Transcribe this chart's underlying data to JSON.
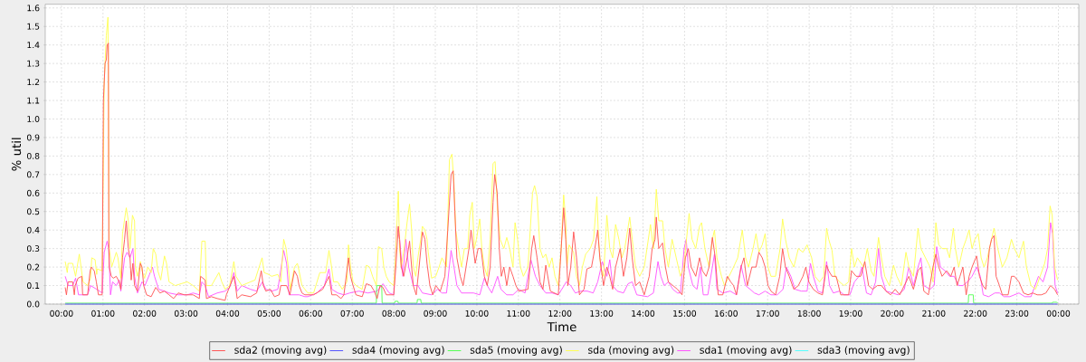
{
  "chart_data": {
    "type": "line",
    "xlabel": "Time",
    "ylabel": "% util",
    "xlim": [
      -0.39,
      24.49
    ],
    "ylim": [
      0,
      1.62
    ],
    "xticks": [
      {
        "value": 0,
        "label": "00:00"
      },
      {
        "value": 1,
        "label": "01:00"
      },
      {
        "value": 2,
        "label": "02:00"
      },
      {
        "value": 3,
        "label": "03:00"
      },
      {
        "value": 4,
        "label": "04:00"
      },
      {
        "value": 5,
        "label": "05:00"
      },
      {
        "value": 6,
        "label": "06:00"
      },
      {
        "value": 7,
        "label": "07:00"
      },
      {
        "value": 8,
        "label": "08:00"
      },
      {
        "value": 9,
        "label": "09:00"
      },
      {
        "value": 10,
        "label": "10:00"
      },
      {
        "value": 11,
        "label": "11:00"
      },
      {
        "value": 12,
        "label": "12:00"
      },
      {
        "value": 13,
        "label": "13:00"
      },
      {
        "value": 14,
        "label": "14:00"
      },
      {
        "value": 15,
        "label": "15:00"
      },
      {
        "value": 16,
        "label": "16:00"
      },
      {
        "value": 17,
        "label": "17:00"
      },
      {
        "value": 18,
        "label": "18:00"
      },
      {
        "value": 19,
        "label": "19:00"
      },
      {
        "value": 20,
        "label": "20:00"
      },
      {
        "value": 21,
        "label": "21:00"
      },
      {
        "value": 22,
        "label": "22:00"
      },
      {
        "value": 23,
        "label": "23:00"
      },
      {
        "value": 24,
        "label": "00:00"
      }
    ],
    "yticks": [
      {
        "value": 0,
        "label": "0.0"
      },
      0.1,
      0.2,
      0.3,
      0.4,
      0.5,
      0.6,
      0.7,
      0.8,
      0.9,
      {
        "value": 1,
        "label": "1.0"
      },
      1.1,
      1.2,
      1.3,
      1.4,
      1.5,
      1.6
    ],
    "grid": true,
    "legend": "bottom",
    "series": [
      {
        "name": "sda2 (moving avg)",
        "color": "#ff5555",
        "x": [
          0.09,
          0.12,
          0.16,
          0.27,
          0.31,
          0.33,
          0.4,
          0.49,
          0.51,
          0.63,
          0.69,
          0.72,
          0.79,
          0.84,
          0.89,
          0.98,
          1.01,
          1.05,
          1.08,
          1.1,
          1.13,
          1.14,
          1.15,
          1.2,
          1.25,
          1.32,
          1.39,
          1.43,
          1.47,
          1.52,
          1.56,
          1.61,
          1.65,
          1.68,
          1.72,
          1.76,
          1.83,
          1.9,
          1.94,
          1.98,
          2.05,
          2.16,
          2.27,
          2.37,
          2.48,
          2.59,
          2.7,
          2.81,
          2.96,
          3.17,
          3.32,
          3.35,
          3.46,
          3.49,
          3.61,
          3.75,
          3.94,
          3.97,
          4.15,
          4.19,
          4.23,
          4.34,
          4.55,
          4.7,
          4.81,
          4.86,
          4.92,
          5.03,
          5.13,
          5.24,
          5.28,
          5.42,
          5.5,
          5.61,
          5.68,
          5.72,
          5.79,
          5.86,
          6.07,
          6.29,
          6.44,
          6.51,
          6.62,
          6.73,
          6.8,
          6.91,
          6.96,
          7.02,
          7.09,
          7.24,
          7.34,
          7.45,
          7.53,
          7.6,
          7.67,
          7.74,
          7.82,
          8.0,
          8.05,
          8.11,
          8.14,
          8.18,
          8.24,
          8.32,
          8.38,
          8.43,
          8.47,
          8.54,
          8.61,
          8.69,
          8.75,
          8.8,
          8.87,
          8.94,
          9.01,
          9.12,
          9.23,
          9.3,
          9.38,
          9.43,
          9.47,
          9.52,
          9.6,
          9.67,
          9.74,
          9.81,
          9.86,
          9.96,
          10.03,
          10.1,
          10.18,
          10.25,
          10.32,
          10.39,
          10.43,
          10.49,
          10.54,
          10.59,
          10.65,
          10.72,
          10.79,
          10.87,
          10.94,
          11.01,
          11.23,
          11.32,
          11.37,
          11.45,
          11.52,
          11.59,
          11.66,
          11.77,
          11.96,
          12.03,
          12.09,
          12.14,
          12.19,
          12.26,
          12.33,
          12.4,
          12.47,
          12.58,
          12.65,
          12.76,
          12.84,
          12.91,
          12.96,
          13.05,
          13.13,
          13.2,
          13.27,
          13.34,
          13.45,
          13.53,
          13.61,
          13.68,
          13.74,
          13.82,
          13.92,
          14.03,
          14.15,
          14.22,
          14.29,
          14.32,
          14.38,
          14.47,
          14.54,
          14.61,
          14.72,
          14.83,
          14.94,
          15.02,
          15.09,
          15.16,
          15.27,
          15.36,
          15.43,
          15.52,
          15.59,
          15.67,
          15.74,
          15.81,
          15.92,
          16.03,
          16.11,
          16.18,
          16.25,
          16.36,
          16.43,
          16.51,
          16.62,
          16.72,
          16.79,
          16.87,
          16.94,
          17.01,
          17.08,
          17.19,
          17.29,
          17.36,
          17.43,
          17.52,
          17.63,
          17.74,
          17.85,
          17.92,
          17.99,
          18.1,
          18.21,
          18.32,
          18.42,
          18.47,
          18.55,
          18.65,
          18.76,
          18.95,
          19.02,
          19.13,
          19.24,
          19.34,
          19.43,
          19.53,
          19.64,
          19.74,
          19.85,
          19.96,
          20.07,
          20.18,
          20.29,
          20.4,
          20.51,
          20.62,
          20.69,
          20.76,
          20.87,
          20.98,
          21.05,
          21.12,
          21.2,
          21.31,
          21.41,
          21.49,
          21.56,
          21.63,
          21.7,
          21.78,
          21.85,
          21.92,
          22.03,
          22.1,
          22.18,
          22.25,
          22.34,
          22.39,
          22.45,
          22.5,
          22.58,
          22.65,
          22.79,
          22.87,
          22.94,
          23.05,
          23.16,
          23.27,
          23.38,
          23.49,
          23.59,
          23.7,
          23.81,
          23.91,
          23.98
        ],
        "values": [
          0.09,
          0.05,
          0.12,
          0.12,
          0.05,
          0.1,
          0.14,
          0.15,
          0.05,
          0.05,
          0.18,
          0.2,
          0.18,
          0.12,
          0.05,
          0.05,
          1.1,
          1.3,
          1.32,
          1.4,
          1.41,
          0.3,
          0.2,
          0.15,
          0.14,
          0.15,
          0.12,
          0.08,
          0.25,
          0.35,
          0.45,
          0.3,
          0.25,
          0.13,
          0.22,
          0.1,
          0.07,
          0.22,
          0.2,
          0.1,
          0.05,
          0.04,
          0.09,
          0.06,
          0.07,
          0.05,
          0.03,
          0.06,
          0.05,
          0.05,
          0.03,
          0.15,
          0.13,
          0.03,
          0.04,
          0.03,
          0.02,
          0.05,
          0.15,
          0.1,
          0.03,
          0.05,
          0.04,
          0.06,
          0.18,
          0.1,
          0.07,
          0.08,
          0.04,
          0.05,
          0.1,
          0.1,
          0.05,
          0.18,
          0.15,
          0.1,
          0.06,
          0.05,
          0.05,
          0.08,
          0.15,
          0.05,
          0.05,
          0.03,
          0.05,
          0.25,
          0.15,
          0.1,
          0.05,
          0.04,
          0.11,
          0.1,
          0.07,
          0.03,
          0.1,
          0.09,
          0.05,
          0.05,
          0.2,
          0.42,
          0.35,
          0.2,
          0.15,
          0.25,
          0.34,
          0.2,
          0.1,
          0.05,
          0.2,
          0.39,
          0.35,
          0.22,
          0.1,
          0.05,
          0.1,
          0.07,
          0.15,
          0.4,
          0.7,
          0.72,
          0.5,
          0.25,
          0.15,
          0.1,
          0.2,
          0.3,
          0.4,
          0.22,
          0.3,
          0.3,
          0.15,
          0.1,
          0.2,
          0.55,
          0.7,
          0.6,
          0.3,
          0.15,
          0.2,
          0.1,
          0.2,
          0.15,
          0.1,
          0.07,
          0.08,
          0.3,
          0.37,
          0.25,
          0.12,
          0.08,
          0.21,
          0.07,
          0.05,
          0.3,
          0.52,
          0.35,
          0.1,
          0.2,
          0.39,
          0.25,
          0.05,
          0.08,
          0.19,
          0.2,
          0.3,
          0.4,
          0.25,
          0.1,
          0.2,
          0.15,
          0.08,
          0.2,
          0.3,
          0.15,
          0.25,
          0.41,
          0.25,
          0.1,
          0.12,
          0.05,
          0.15,
          0.3,
          0.35,
          0.47,
          0.3,
          0.33,
          0.2,
          0.12,
          0.1,
          0.08,
          0.05,
          0.25,
          0.3,
          0.2,
          0.15,
          0.25,
          0.18,
          0.15,
          0.2,
          0.36,
          0.25,
          0.05,
          0.05,
          0.15,
          0.12,
          0.1,
          0.05,
          0.2,
          0.25,
          0.1,
          0.2,
          0.2,
          0.28,
          0.25,
          0.2,
          0.1,
          0.07,
          0.05,
          0.15,
          0.3,
          0.2,
          0.15,
          0.08,
          0.1,
          0.15,
          0.2,
          0.12,
          0.08,
          0.06,
          0.05,
          0.21,
          0.18,
          0.15,
          0.15,
          0.05,
          0.05,
          0.18,
          0.15,
          0.15,
          0.23,
          0.1,
          0.08,
          0.1,
          0.1,
          0.07,
          0.05,
          0.08,
          0.05,
          0.1,
          0.15,
          0.08,
          0.18,
          0.2,
          0.07,
          0.05,
          0.2,
          0.27,
          0.2,
          0.15,
          0.18,
          0.15,
          0.2,
          0.1,
          0.15,
          0.2,
          0.05,
          0.15,
          0.2,
          0.26,
          0.15,
          0.1,
          0.08,
          0.3,
          0.35,
          0.37,
          0.15,
          0.1,
          0.05,
          0.05,
          0.15,
          0.15,
          0.12,
          0.06,
          0.05,
          0.06,
          0.05,
          0.05,
          0.06,
          0.1,
          0.08,
          0.05
        ]
      },
      {
        "name": "sda4 (moving avg)",
        "color": "#5555ff",
        "x": [
          0.09,
          23.98
        ],
        "values": [
          0,
          0
        ]
      },
      {
        "name": "sda5 (moving avg)",
        "color": "#55ff55",
        "x": [
          0.09,
          7.58,
          7.59,
          7.71,
          7.72,
          8.02,
          8.03,
          8.1,
          8.11,
          8.56,
          8.57,
          8.65,
          8.66,
          21.83,
          21.84,
          21.95,
          21.96,
          23.85,
          23.86,
          23.96,
          23.98
        ],
        "values": [
          0.005,
          0.005,
          0.1,
          0.1,
          0.005,
          0.005,
          0.015,
          0.015,
          0.005,
          0.005,
          0.025,
          0.025,
          0.005,
          0.005,
          0.05,
          0.05,
          0.005,
          0.005,
          0.01,
          0.01,
          0.005
        ]
      },
      {
        "name": "sda (moving avg)",
        "color": "#ffff55",
        "x": [
          0.09,
          0.14,
          0.16,
          0.27,
          0.34,
          0.43,
          0.52,
          0.63,
          0.7,
          0.73,
          0.81,
          0.85,
          0.86,
          0.98,
          1.03,
          1.07,
          1.08,
          1.1,
          1.12,
          1.15,
          1.21,
          1.32,
          1.36,
          1.43,
          1.47,
          1.56,
          1.61,
          1.65,
          1.71,
          1.76,
          1.78,
          1.83,
          1.9,
          1.94,
          2.0,
          2.08,
          2.16,
          2.21,
          2.27,
          2.32,
          2.39,
          2.48,
          2.53,
          2.59,
          2.74,
          2.88,
          3.03,
          3.17,
          3.32,
          3.38,
          3.46,
          3.49,
          3.61,
          3.79,
          3.86,
          3.94,
          4.05,
          4.15,
          4.2,
          4.34,
          4.55,
          4.66,
          4.73,
          4.83,
          4.88,
          4.99,
          5.06,
          5.21,
          5.28,
          5.35,
          5.41,
          5.46,
          5.51,
          5.61,
          5.68,
          5.72,
          5.79,
          5.86,
          5.93,
          6.07,
          6.22,
          6.36,
          6.44,
          6.49,
          6.55,
          6.65,
          6.76,
          6.87,
          6.91,
          6.96,
          7.02,
          7.09,
          7.24,
          7.34,
          7.42,
          7.49,
          7.58,
          7.63,
          7.71,
          7.76,
          7.82,
          7.89,
          8.0,
          8.05,
          8.11,
          8.14,
          8.18,
          8.25,
          8.32,
          8.38,
          8.43,
          8.47,
          8.53,
          8.58,
          8.65,
          8.69,
          8.75,
          8.8,
          8.83,
          8.91,
          9.01,
          9.09,
          9.16,
          9.27,
          9.34,
          9.4,
          9.45,
          9.49,
          9.56,
          9.63,
          9.7,
          9.78,
          9.83,
          9.89,
          9.94,
          9.99,
          10.07,
          10.12,
          10.18,
          10.25,
          10.32,
          10.39,
          10.44,
          10.5,
          10.56,
          10.65,
          10.72,
          10.79,
          10.87,
          10.92,
          10.98,
          11.05,
          11.12,
          11.23,
          11.34,
          11.39,
          11.45,
          11.52,
          11.59,
          11.66,
          11.74,
          11.81,
          11.88,
          11.96,
          12.03,
          12.09,
          12.14,
          12.17,
          12.22,
          12.33,
          12.4,
          12.47,
          12.54,
          12.62,
          12.73,
          12.81,
          12.89,
          12.93,
          12.98,
          13.05,
          13.13,
          13.2,
          13.27,
          13.34,
          13.42,
          13.49,
          13.56,
          13.68,
          13.74,
          13.82,
          13.92,
          14.03,
          14.18,
          14.25,
          14.32,
          14.38,
          14.47,
          14.53,
          14.61,
          14.7,
          14.8,
          14.9,
          14.98,
          15.11,
          15.18,
          15.27,
          15.36,
          15.41,
          15.49,
          15.59,
          15.67,
          15.72,
          15.78,
          15.89,
          15.96,
          16.07,
          16.18,
          16.28,
          16.39,
          16.47,
          16.54,
          16.65,
          16.72,
          16.79,
          16.87,
          16.94,
          17.01,
          17.08,
          17.19,
          17.3,
          17.36,
          17.43,
          17.52,
          17.63,
          17.74,
          17.85,
          17.95,
          18.06,
          18.14,
          18.25,
          18.35,
          18.42,
          18.47,
          18.55,
          18.62,
          18.73,
          18.84,
          18.95,
          19.02,
          19.09,
          19.16,
          19.31,
          19.4,
          19.49,
          19.56,
          19.67,
          19.74,
          19.82,
          19.93,
          20.03,
          20.11,
          20.22,
          20.33,
          20.4,
          20.51,
          20.62,
          20.69,
          20.8,
          20.91,
          20.98,
          21.05,
          21.12,
          21.2,
          21.31,
          21.38,
          21.47,
          21.52,
          21.6,
          21.7,
          21.78,
          21.85,
          21.92,
          21.99,
          22.07,
          22.14,
          22.21,
          22.29,
          22.39,
          22.45,
          22.54,
          22.65,
          22.76,
          22.87,
          22.94,
          23.05,
          23.16,
          23.23,
          23.34,
          23.45,
          23.56,
          23.67,
          23.74,
          23.8,
          23.85,
          23.91,
          23.98
        ],
        "values": [
          0.23,
          0.17,
          0.22,
          0.22,
          0.15,
          0.27,
          0.12,
          0.1,
          0.14,
          0.25,
          0.24,
          0.16,
          0.19,
          0.18,
          1.2,
          1.4,
          1.45,
          1.5,
          1.55,
          0.3,
          0.2,
          0.28,
          0.25,
          0.14,
          0.38,
          0.52,
          0.45,
          0.3,
          0.48,
          0.45,
          0.2,
          0.15,
          0.23,
          0.18,
          0.14,
          0.2,
          0.17,
          0.3,
          0.27,
          0.18,
          0.13,
          0.26,
          0.22,
          0.12,
          0.1,
          0.11,
          0.12,
          0.1,
          0.07,
          0.34,
          0.34,
          0.1,
          0.1,
          0.17,
          0.12,
          0.08,
          0.1,
          0.23,
          0.15,
          0.1,
          0.12,
          0.13,
          0.18,
          0.25,
          0.17,
          0.16,
          0.15,
          0.16,
          0.12,
          0.35,
          0.3,
          0.2,
          0.08,
          0.2,
          0.22,
          0.18,
          0.1,
          0.08,
          0.06,
          0.06,
          0.17,
          0.17,
          0.29,
          0.22,
          0.12,
          0.12,
          0.08,
          0.12,
          0.32,
          0.2,
          0.12,
          0.1,
          0.08,
          0.21,
          0.2,
          0.15,
          0.1,
          0.31,
          0.3,
          0.2,
          0.15,
          0.12,
          0.1,
          0.3,
          0.61,
          0.3,
          0.2,
          0.3,
          0.44,
          0.54,
          0.4,
          0.2,
          0.15,
          0.25,
          0.35,
          0.42,
          0.4,
          0.35,
          0.28,
          0.14,
          0.15,
          0.2,
          0.25,
          0.2,
          0.78,
          0.81,
          0.65,
          0.4,
          0.3,
          0.2,
          0.3,
          0.3,
          0.48,
          0.55,
          0.3,
          0.35,
          0.46,
          0.3,
          0.2,
          0.15,
          0.35,
          0.76,
          0.77,
          0.5,
          0.35,
          0.3,
          0.36,
          0.3,
          0.2,
          0.44,
          0.35,
          0.2,
          0.15,
          0.2,
          0.6,
          0.64,
          0.58,
          0.3,
          0.25,
          0.27,
          0.2,
          0.25,
          0.15,
          0.1,
          0.3,
          0.59,
          0.45,
          0.2,
          0.32,
          0.28,
          0.15,
          0.1,
          0.2,
          0.27,
          0.3,
          0.35,
          0.58,
          0.35,
          0.2,
          0.15,
          0.48,
          0.3,
          0.25,
          0.43,
          0.35,
          0.25,
          0.3,
          0.47,
          0.35,
          0.2,
          0.15,
          0.2,
          0.43,
          0.3,
          0.62,
          0.45,
          0.45,
          0.3,
          0.2,
          0.35,
          0.25,
          0.15,
          0.2,
          0.49,
          0.35,
          0.3,
          0.42,
          0.44,
          0.3,
          0.2,
          0.35,
          0.4,
          0.25,
          0.15,
          0.1,
          0.15,
          0.2,
          0.25,
          0.4,
          0.25,
          0.2,
          0.3,
          0.38,
          0.28,
          0.32,
          0.38,
          0.2,
          0.15,
          0.15,
          0.3,
          0.46,
          0.35,
          0.25,
          0.2,
          0.3,
          0.28,
          0.32,
          0.25,
          0.15,
          0.12,
          0.15,
          0.41,
          0.35,
          0.29,
          0.15,
          0.12,
          0.1,
          0.12,
          0.3,
          0.2,
          0.25,
          0.2,
          0.3,
          0.18,
          0.15,
          0.36,
          0.25,
          0.15,
          0.1,
          0.21,
          0.15,
          0.1,
          0.28,
          0.2,
          0.15,
          0.41,
          0.3,
          0.25,
          0.2,
          0.12,
          0.44,
          0.32,
          0.3,
          0.3,
          0.25,
          0.41,
          0.3,
          0.2,
          0.3,
          0.35,
          0.4,
          0.3,
          0.35,
          0.38,
          0.25,
          0.2,
          0.25,
          0.35,
          0.41,
          0.3,
          0.2,
          0.25,
          0.35,
          0.3,
          0.25,
          0.34,
          0.2,
          0.1,
          0.08,
          0.15,
          0.22,
          0.3,
          0.53,
          0.48,
          0.2,
          0.13
        ]
      },
      {
        "name": "sda1 (moving avg)",
        "color": "#ff55ff",
        "x": [
          0.09,
          0.16,
          0.27,
          0.34,
          0.41,
          0.63,
          0.7,
          0.85,
          0.98,
          1.03,
          1.1,
          1.14,
          1.18,
          1.23,
          1.32,
          1.39,
          1.43,
          1.52,
          1.58,
          1.65,
          1.72,
          1.76,
          1.83,
          1.94,
          2.01,
          2.12,
          2.19,
          2.24,
          2.34,
          2.48,
          2.59,
          2.81,
          3.03,
          3.17,
          3.32,
          3.38,
          3.46,
          3.54,
          3.75,
          3.94,
          4.05,
          4.15,
          4.23,
          4.34,
          4.55,
          4.7,
          4.84,
          4.92,
          5.06,
          5.21,
          5.35,
          5.42,
          5.48,
          5.61,
          5.72,
          5.86,
          5.93,
          6.15,
          6.33,
          6.44,
          6.51,
          6.65,
          6.8,
          6.94,
          7.16,
          7.38,
          7.6,
          7.74,
          7.89,
          8.0,
          8.07,
          8.14,
          8.22,
          8.29,
          8.36,
          8.47,
          8.58,
          8.69,
          8.91,
          9.05,
          9.16,
          9.27,
          9.38,
          9.45,
          9.52,
          9.63,
          9.92,
          10.07,
          10.18,
          10.25,
          10.36,
          10.5,
          10.58,
          10.72,
          10.87,
          11.01,
          11.16,
          11.3,
          11.41,
          11.52,
          11.66,
          11.81,
          11.96,
          12.1,
          12.15,
          12.26,
          12.37,
          12.51,
          12.66,
          12.8,
          12.91,
          13.02,
          13.13,
          13.2,
          13.27,
          13.38,
          13.53,
          13.64,
          13.74,
          13.85,
          14.11,
          14.25,
          14.36,
          14.43,
          14.51,
          14.61,
          14.72,
          14.83,
          14.9,
          14.99,
          15.04,
          15.09,
          15.2,
          15.3,
          15.38,
          15.45,
          15.56,
          15.67,
          15.72,
          15.78,
          15.92,
          16.1,
          16.25,
          16.36,
          16.47,
          16.58,
          16.68,
          16.79,
          16.94,
          17.08,
          17.23,
          17.37,
          17.45,
          17.56,
          17.66,
          17.81,
          17.95,
          18.03,
          18.1,
          18.21,
          18.32,
          18.42,
          18.49,
          18.58,
          18.73,
          18.84,
          18.98,
          19.09,
          19.2,
          19.27,
          19.38,
          19.49,
          19.6,
          19.67,
          19.74,
          19.85,
          20.0,
          20.14,
          20.29,
          20.4,
          20.51,
          20.62,
          20.69,
          20.76,
          20.91,
          21.01,
          21.07,
          21.16,
          21.27,
          21.38,
          21.49,
          21.6,
          21.7,
          21.81,
          21.92,
          22.03,
          22.12,
          22.19,
          22.32,
          22.47,
          22.58,
          22.69,
          22.83,
          22.94,
          23.05,
          23.19,
          23.34,
          23.52,
          23.63,
          23.74,
          23.81,
          23.86,
          23.92,
          23.98
        ],
        "values": [
          0.15,
          0.1,
          0.1,
          0.14,
          0.05,
          0.05,
          0.1,
          0.08,
          0.06,
          0.28,
          0.34,
          0.3,
          0.05,
          0.12,
          0.1,
          0.13,
          0.07,
          0.25,
          0.28,
          0.25,
          0.3,
          0.15,
          0.06,
          0.12,
          0.1,
          0.16,
          0.2,
          0.15,
          0.08,
          0.07,
          0.06,
          0.05,
          0.05,
          0.06,
          0.05,
          0.12,
          0.1,
          0.04,
          0.06,
          0.07,
          0.09,
          0.17,
          0.07,
          0.1,
          0.08,
          0.07,
          0.12,
          0.08,
          0.07,
          0.08,
          0.29,
          0.22,
          0.05,
          0.05,
          0.05,
          0.04,
          0.04,
          0.06,
          0.1,
          0.19,
          0.08,
          0.06,
          0.05,
          0.06,
          0.07,
          0.06,
          0.07,
          0.11,
          0.06,
          0.05,
          0.42,
          0.35,
          0.15,
          0.35,
          0.2,
          0.1,
          0.1,
          0.06,
          0.05,
          0.08,
          0.06,
          0.06,
          0.29,
          0.2,
          0.1,
          0.06,
          0.06,
          0.05,
          0.14,
          0.1,
          0.06,
          0.15,
          0.08,
          0.05,
          0.05,
          0.08,
          0.06,
          0.24,
          0.15,
          0.1,
          0.06,
          0.06,
          0.05,
          0.1,
          0.12,
          0.1,
          0.06,
          0.07,
          0.07,
          0.06,
          0.12,
          0.23,
          0.15,
          0.24,
          0.1,
          0.07,
          0.06,
          0.11,
          0.12,
          0.05,
          0.04,
          0.06,
          0.23,
          0.15,
          0.1,
          0.12,
          0.08,
          0.06,
          0.06,
          0.3,
          0.35,
          0.2,
          0.1,
          0.08,
          0.2,
          0.05,
          0.05,
          0.2,
          0.27,
          0.08,
          0.06,
          0.07,
          0.05,
          0.21,
          0.1,
          0.08,
          0.06,
          0.05,
          0.07,
          0.05,
          0.05,
          0.08,
          0.2,
          0.15,
          0.08,
          0.07,
          0.07,
          0.22,
          0.15,
          0.07,
          0.06,
          0.23,
          0.1,
          0.06,
          0.07,
          0.05,
          0.05,
          0.12,
          0.15,
          0.2,
          0.06,
          0.05,
          0.12,
          0.3,
          0.15,
          0.07,
          0.06,
          0.05,
          0.08,
          0.2,
          0.1,
          0.2,
          0.25,
          0.1,
          0.08,
          0.1,
          0.31,
          0.2,
          0.18,
          0.15,
          0.15,
          0.1,
          0.1,
          0.12,
          0.15,
          0.2,
          0.15,
          0.05,
          0.04,
          0.06,
          0.06,
          0.04,
          0.04,
          0.05,
          0.06,
          0.04,
          0.04,
          0.15,
          0.12,
          0.2,
          0.44,
          0.38,
          0.1,
          0.06
        ]
      },
      {
        "name": "sda3 (moving avg)",
        "color": "#55ffff"
      }
    ]
  }
}
